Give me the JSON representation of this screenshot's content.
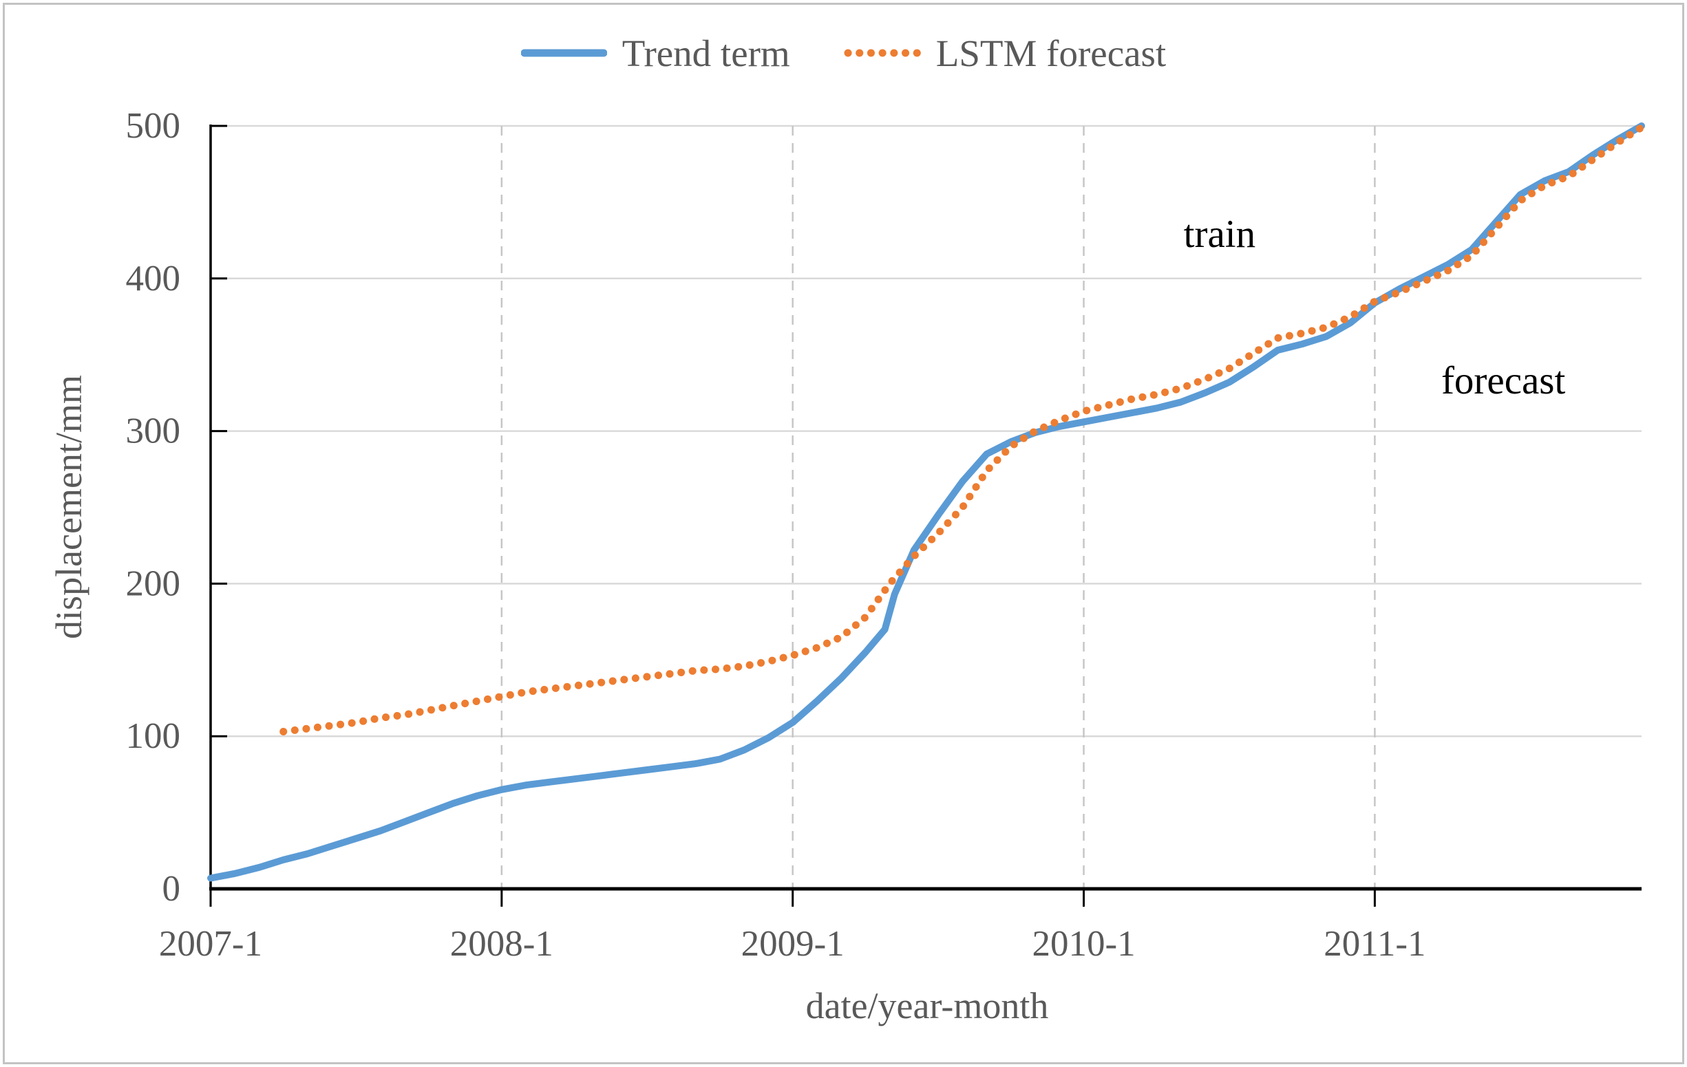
{
  "chart_data": {
    "type": "line",
    "title": "",
    "xlabel": "date/year-month",
    "ylabel": "displacement/mm",
    "x_unit": "months since 2007-1",
    "xlim": [
      0,
      59
    ],
    "ylim": [
      0,
      500
    ],
    "grid": {
      "horizontal": "solid",
      "vertical": "dashed",
      "horizontal_color": "#d9d9d9",
      "vertical_color": "#c6c6c6"
    },
    "legend_position": "top-center",
    "x_ticks": [
      {
        "m": 0,
        "label": "2007-1"
      },
      {
        "m": 12,
        "label": "2008-1"
      },
      {
        "m": 24,
        "label": "2009-1"
      },
      {
        "m": 36,
        "label": "2010-1"
      },
      {
        "m": 48,
        "label": "2011-1"
      }
    ],
    "y_ticks": [
      {
        "value": 0,
        "label": "0"
      },
      {
        "value": 100,
        "label": "100"
      },
      {
        "value": 200,
        "label": "200"
      },
      {
        "value": 300,
        "label": "300"
      },
      {
        "value": 400,
        "label": "400"
      },
      {
        "value": 500,
        "label": "500"
      }
    ],
    "annotations": [
      {
        "text": "train",
        "m": 41.6,
        "value": 429
      },
      {
        "text": "forecast",
        "m": 53.3,
        "value": 333
      }
    ],
    "series": [
      {
        "name": "Trend term",
        "color": "#5b9bd5",
        "style": "solid",
        "points": [
          [
            0,
            7
          ],
          [
            1,
            10
          ],
          [
            2,
            14
          ],
          [
            3,
            19
          ],
          [
            4,
            23
          ],
          [
            5,
            28
          ],
          [
            6,
            33
          ],
          [
            7,
            38
          ],
          [
            8,
            44
          ],
          [
            9,
            50
          ],
          [
            10,
            56
          ],
          [
            11,
            61
          ],
          [
            12,
            65
          ],
          [
            13,
            68
          ],
          [
            14,
            70
          ],
          [
            15,
            72
          ],
          [
            16,
            74
          ],
          [
            17,
            76
          ],
          [
            18,
            78
          ],
          [
            19,
            80
          ],
          [
            20,
            82
          ],
          [
            21,
            85
          ],
          [
            22,
            91
          ],
          [
            23,
            99
          ],
          [
            24,
            109
          ],
          [
            25,
            123
          ],
          [
            26,
            138
          ],
          [
            27,
            155
          ],
          [
            27.8,
            170
          ],
          [
            28.2,
            193
          ],
          [
            29,
            222
          ],
          [
            30,
            245
          ],
          [
            31,
            267
          ],
          [
            32,
            285
          ],
          [
            33,
            293
          ],
          [
            34,
            299
          ],
          [
            35,
            303
          ],
          [
            36,
            306
          ],
          [
            37,
            309
          ],
          [
            38,
            312
          ],
          [
            39,
            315
          ],
          [
            40,
            319
          ],
          [
            41,
            325
          ],
          [
            42,
            332
          ],
          [
            43,
            342
          ],
          [
            44,
            353
          ],
          [
            45,
            357
          ],
          [
            46,
            362
          ],
          [
            47,
            371
          ],
          [
            48,
            384
          ],
          [
            49,
            393
          ],
          [
            50,
            401
          ],
          [
            51,
            409
          ],
          [
            52,
            419
          ],
          [
            53,
            437
          ],
          [
            54,
            455
          ],
          [
            55,
            464
          ],
          [
            56,
            470
          ],
          [
            57,
            481
          ],
          [
            58,
            491
          ],
          [
            59,
            500
          ]
        ]
      },
      {
        "name": "LSTM forecast",
        "color": "#ed7d31",
        "style": "dotted",
        "points": [
          [
            3,
            103
          ],
          [
            4,
            105
          ],
          [
            5,
            107
          ],
          [
            6,
            109
          ],
          [
            7,
            112
          ],
          [
            8,
            114
          ],
          [
            9,
            117
          ],
          [
            10,
            120
          ],
          [
            11,
            123
          ],
          [
            12,
            126
          ],
          [
            13,
            129
          ],
          [
            14,
            131
          ],
          [
            15,
            133
          ],
          [
            16,
            135
          ],
          [
            17,
            137
          ],
          [
            18,
            139
          ],
          [
            19,
            141
          ],
          [
            20,
            143
          ],
          [
            21,
            144
          ],
          [
            22,
            146
          ],
          [
            23,
            149
          ],
          [
            24,
            153
          ],
          [
            25,
            158
          ],
          [
            26,
            165
          ],
          [
            27,
            178
          ],
          [
            28,
            200
          ],
          [
            29,
            218
          ],
          [
            30,
            233
          ],
          [
            31,
            250
          ],
          [
            32,
            274
          ],
          [
            33,
            290
          ],
          [
            34,
            300
          ],
          [
            35,
            307
          ],
          [
            36,
            313
          ],
          [
            37,
            317
          ],
          [
            38,
            321
          ],
          [
            39,
            324
          ],
          [
            40,
            328
          ],
          [
            41,
            334
          ],
          [
            42,
            341
          ],
          [
            43,
            351
          ],
          [
            44,
            361
          ],
          [
            45,
            364
          ],
          [
            46,
            368
          ],
          [
            47,
            375
          ],
          [
            48,
            385
          ],
          [
            49,
            391
          ],
          [
            50,
            398
          ],
          [
            51,
            405
          ],
          [
            52,
            415
          ],
          [
            53,
            433
          ],
          [
            54,
            451
          ],
          [
            55,
            461
          ],
          [
            56,
            467
          ],
          [
            57,
            478
          ],
          [
            58,
            489
          ],
          [
            59,
            499
          ]
        ]
      }
    ],
    "axis_color": "#000000",
    "tick_label_color": "#595959",
    "annotation_color": "#000000"
  },
  "frame": {
    "background": "#ffffff",
    "border_color": "#c3c3c3"
  }
}
